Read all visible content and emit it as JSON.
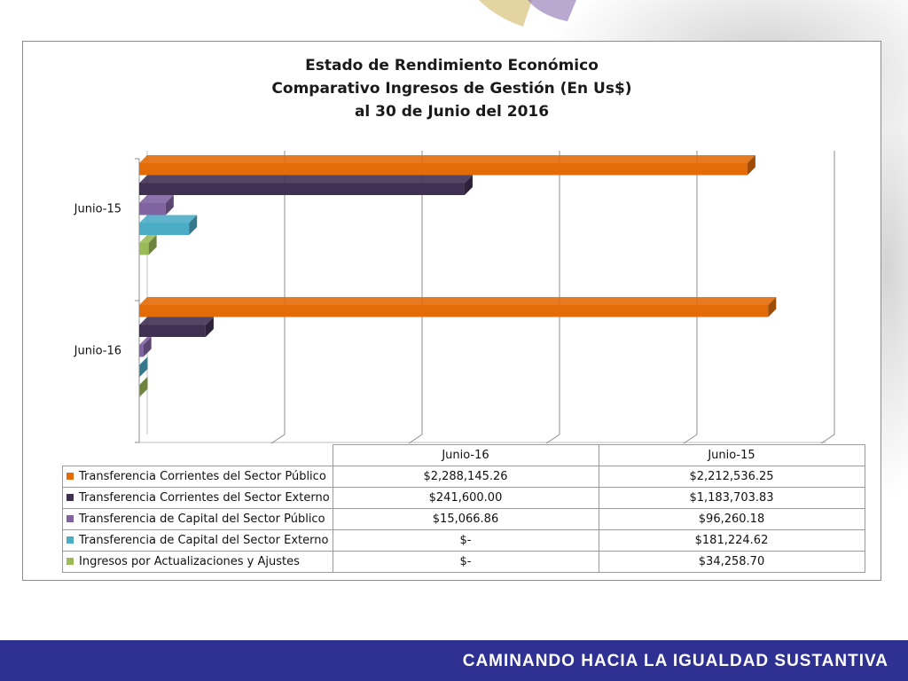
{
  "footer": {
    "text": "CAMINANDO HACIA LA IGUALDAD SUSTANTIVA",
    "color": "#2e3192"
  },
  "chart_data": {
    "type": "bar",
    "orientation": "horizontal",
    "title_lines": [
      "Estado de Rendimiento Económico",
      "Comparativo Ingresos de Gestión (En Us$)",
      "al 30 de Junio del 2016"
    ],
    "categories": [
      "Junio-16",
      "Junio-15"
    ],
    "series": [
      {
        "name": "Transferencia Corrientes del Sector Público",
        "color": "#e36c09",
        "values": [
          2288145.26,
          2212536.25
        ],
        "labels": [
          "$2,288,145.26",
          "$2,212,536.25"
        ]
      },
      {
        "name": "Transferencia Corrientes del Sector Externo",
        "color": "#403152",
        "values": [
          241600.0,
          1183703.83
        ],
        "labels": [
          "$241,600.00",
          "$1,183,703.83"
        ]
      },
      {
        "name": "Transferencia de Capital del Sector Público",
        "color": "#8064a2",
        "values": [
          15066.86,
          96260.18
        ],
        "labels": [
          "$15,066.86",
          "$96,260.18"
        ]
      },
      {
        "name": "Transferencia de Capital del Sector Externo",
        "color": "#4bacc6",
        "values": [
          0,
          181224.62
        ],
        "labels": [
          "$-",
          "$181,224.62"
        ]
      },
      {
        "name": "Ingresos por Actualizaciones y Ajustes",
        "color": "#9bbb59",
        "values": [
          0,
          34258.7
        ],
        "labels": [
          "$-",
          "$34,258.70"
        ]
      }
    ],
    "xlim": [
      0,
      2500000
    ],
    "grid": true,
    "legend": "data-table"
  }
}
